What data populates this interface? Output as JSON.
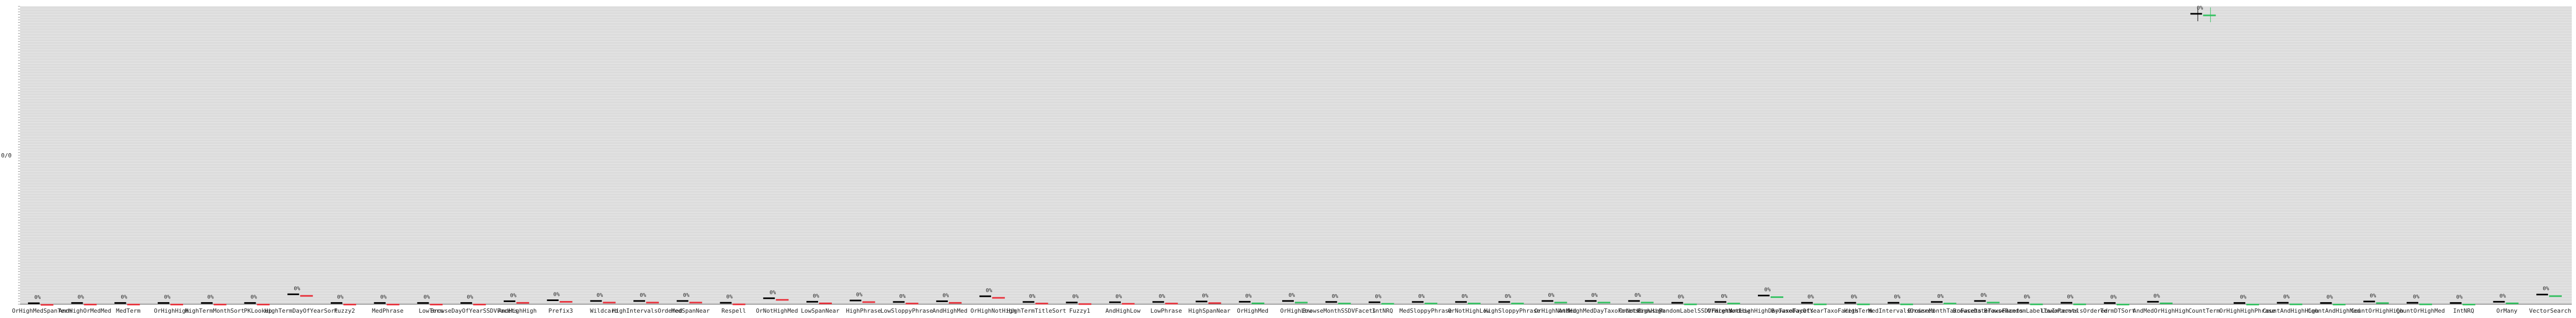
{
  "colors": {
    "plot_bg": "#dcdcdc",
    "grid": "#eeeeee",
    "axis": "#555555",
    "baseline": "#000000",
    "new": "#e8323c",
    "improved": "#33c060"
  },
  "chart_data": {
    "type": "bar",
    "ylabel": "0/0",
    "grid": true,
    "legend": "none",
    "series": [
      {
        "name": "",
        "key": "baseline",
        "color": "#000000"
      },
      {
        "name": "",
        "key": "compare",
        "color": "varies"
      }
    ],
    "categories": [
      "OrHighMedSpanTerm",
      "AndHighOrMedMed",
      "MedTerm",
      "OrHighHigh",
      "HighTermMonthSort",
      "PKLookup",
      "HighTermDayOfYearSort",
      "Fuzzy2",
      "MedPhrase",
      "LowTerm",
      "BrowseDayOfYearSSDVFacets",
      "AndHighHigh",
      "Prefix3",
      "Wildcard",
      "HighIntervalsOrdered",
      "MedSpanNear",
      "Respell",
      "OrNotHighMed",
      "LowSpanNear",
      "HighPhrase",
      "LowSloppyPhrase",
      "AndHighMed",
      "OrHighNotHigh",
      "HighTermTitleSort",
      "Fuzzy1",
      "AndHighLow",
      "LowPhrase",
      "HighSpanNear",
      "OrHighMed",
      "OrHighLow",
      "BrowseMonthSSDVFacets",
      "IntNRQ",
      "MedSloppyPhrase",
      "OrNotHighLow",
      "HighSloppyPhrase",
      "OrHighNotMed",
      "AndHighMedDayTaxoFacets",
      "OrNotHighHigh",
      "BrowseRandomLabelSSDVFacets",
      "OrHighNotLow",
      "AndHighHighDayTaxoFacets",
      "BrowseDayOfYearTaxoFacets",
      "HighTerm",
      "MedIntervalsOrdered",
      "BrowseMonthTaxoFacets",
      "BrowseDateTaxoFacets",
      "BrowseRandomLabelTaxoFacets",
      "LowIntervalsOrdered",
      "TermDTSort",
      "AndMedOrHighHigh",
      "CountTerm",
      "OrHighHighPhrase",
      "CountAndHighHigh",
      "CountAndHighMed",
      "CountOrHighHigh",
      "CountOrHighMed",
      "IntNRQ",
      "OrMany",
      "VectorSearch"
    ],
    "baseline_values": [
      2,
      2,
      2,
      2,
      2,
      2,
      2,
      2,
      2,
      2,
      2,
      2,
      2,
      2,
      2,
      2,
      2,
      2,
      2,
      2,
      2,
      2,
      2,
      2,
      2,
      2,
      2,
      2,
      2,
      2,
      2,
      2,
      2,
      2,
      2,
      2,
      2,
      2,
      2,
      2,
      2,
      2,
      2,
      2,
      2,
      2,
      2,
      2,
      2,
      2,
      2,
      2,
      2,
      2,
      2,
      2,
      2,
      2,
      2
    ],
    "compare_values": [
      1,
      2,
      2,
      2,
      2,
      2,
      1,
      2,
      2,
      2,
      2,
      2,
      2,
      2,
      2,
      2,
      2,
      2,
      2,
      2,
      2,
      2,
      2,
      2,
      2,
      2,
      2,
      2,
      2,
      2,
      2,
      2,
      2,
      2,
      2,
      2,
      2,
      2,
      2,
      2,
      2,
      2,
      2,
      2,
      2,
      2,
      2,
      2,
      2,
      2,
      2,
      2,
      2,
      2,
      2,
      2,
      2,
      2,
      2
    ],
    "data_labels": [
      "0%",
      "0%",
      "0%",
      "0%",
      "0%",
      "0%",
      "0%",
      "0%",
      "0%",
      "0%",
      "0%",
      "0%",
      "0%",
      "0%",
      "0%",
      "0%",
      "0%",
      "0%",
      "0%",
      "0%",
      "0%",
      "0%",
      "0%",
      "0%",
      "0%",
      "0%",
      "0%",
      "0%",
      "0%",
      "0%",
      "0%",
      "0%",
      "0%",
      "0%",
      "0%",
      "0%",
      "0%",
      "0%",
      "0%",
      "0%",
      "0%",
      "0%",
      "0%",
      "0%",
      "0%",
      "0%",
      "0%",
      "0%",
      "0%",
      "0%",
      "0%",
      "0%",
      "0%",
      "0%",
      "0%",
      "0%",
      "0%",
      "0%",
      "0%"
    ],
    "compare_colors": [
      "new",
      "new",
      "new",
      "new",
      "new",
      "new",
      "new",
      "new",
      "new",
      "new",
      "new",
      "new",
      "new",
      "new",
      "new",
      "new",
      "new",
      "new",
      "new",
      "new",
      "new",
      "new",
      "new",
      "new",
      "new",
      "new",
      "new",
      "new",
      "improved",
      "improved",
      "improved",
      "improved",
      "improved",
      "improved",
      "improved",
      "improved",
      "improved",
      "improved",
      "improved",
      "improved",
      "improved",
      "improved",
      "improved",
      "improved",
      "improved",
      "improved",
      "improved",
      "improved",
      "improved",
      "improved",
      "improved",
      "improved",
      "improved",
      "improved",
      "improved",
      "improved",
      "improved",
      "improved",
      "improved"
    ],
    "bar_heights": [
      0.4,
      0.5,
      0.5,
      0.5,
      0.5,
      0.5,
      4.0,
      0.5,
      0.5,
      0.5,
      0.5,
      1.2,
      1.6,
      1.3,
      1.3,
      1.3,
      0.6,
      2.4,
      1.0,
      1.5,
      0.9,
      1.2,
      3.2,
      0.9,
      0.7,
      0.8,
      0.9,
      1.1,
      1.0,
      1.3,
      0.9,
      0.8,
      0.9,
      0.9,
      0.9,
      1.3,
      1.3,
      1.3,
      0.6,
      0.9,
      3.5,
      0.6,
      0.6,
      0.6,
      0.9,
      1.3,
      0.6,
      0.6,
      0.5,
      1.0,
      117.0,
      0.5,
      0.6,
      0.5,
      1.1,
      0.6,
      0.5,
      1.0,
      3.9
    ],
    "annotated_label": "0%",
    "ylim": [
      0,
      120
    ]
  }
}
